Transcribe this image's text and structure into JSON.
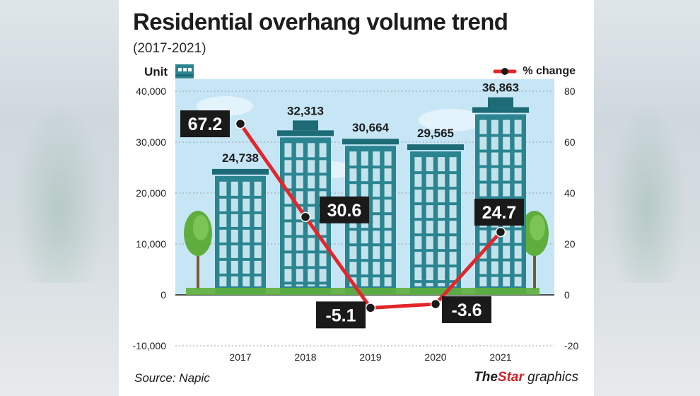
{
  "header": {
    "title": "Residential overhang volume trend",
    "subtitle": "(2017-2021)"
  },
  "axis": {
    "left_unit": "Unit",
    "legend_label": "% change"
  },
  "footer": {
    "source": "Source: Napic",
    "brand_the": "The",
    "brand_star": "Star",
    "brand_graphics": "graphics"
  },
  "colors": {
    "building_primary": "#2b8590",
    "building_dark": "#1c6b76",
    "sky": "#c6e6f6",
    "line": "#e3262b",
    "label_box": "#1a1a1a",
    "tree": "#5fae3d"
  },
  "chart_data": {
    "type": "bar+line",
    "categories": [
      "2017",
      "2018",
      "2019",
      "2020",
      "2021"
    ],
    "bar_series": {
      "values": [
        24738,
        32313,
        30664,
        29565,
        36863
      ],
      "value_labels": [
        "24,738",
        "32,313",
        "30,664",
        "29,565",
        "36,863"
      ],
      "axis": "left"
    },
    "line_series": {
      "name": "% change",
      "values": [
        67.2,
        30.6,
        -5.1,
        -3.6,
        24.7
      ],
      "value_labels": [
        "67.2",
        "30.6",
        "-5.1",
        "-3.6",
        "24.7"
      ],
      "axis": "right"
    },
    "left_axis": {
      "ylim": [
        -10000,
        40000
      ],
      "ticks": [
        -10000,
        0,
        10000,
        20000,
        30000,
        40000
      ],
      "tick_labels": [
        "-10,000",
        "0",
        "10,000",
        "20,000",
        "30,000",
        "40,000"
      ]
    },
    "right_axis": {
      "ylim": [
        -20,
        80
      ],
      "ticks": [
        -20,
        0,
        20,
        40,
        60,
        80
      ],
      "tick_labels": [
        "-20",
        "0",
        "20",
        "40",
        "60",
        "80"
      ]
    },
    "legend_position": "top-right",
    "grid": "dotted horizontal"
  }
}
